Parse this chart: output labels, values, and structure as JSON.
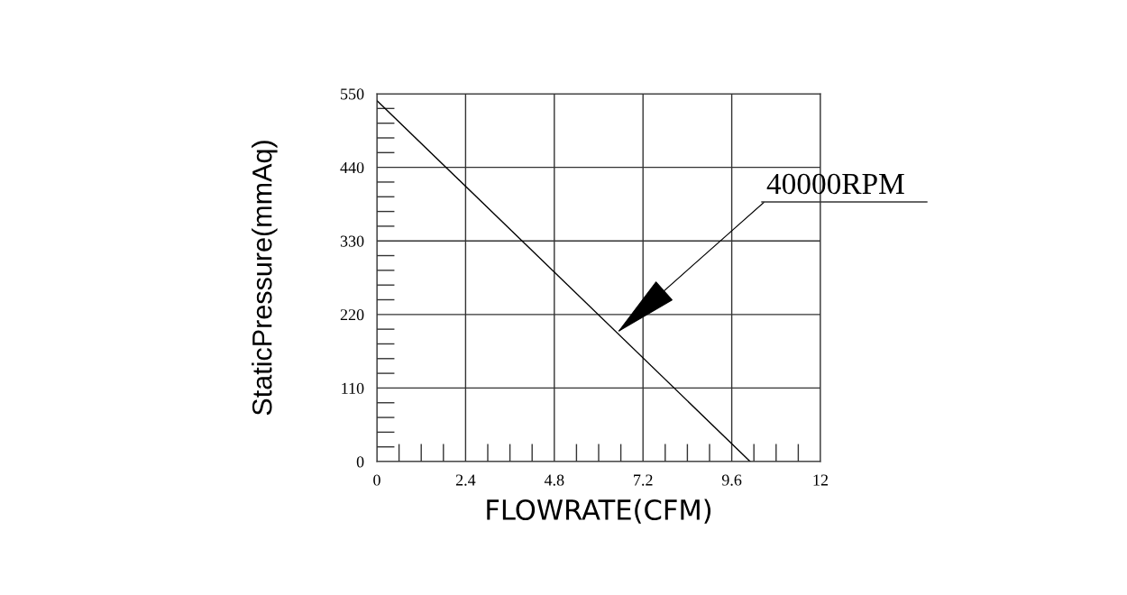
{
  "chart_data": {
    "type": "line",
    "xlabel": "FLOWRATE(CFM)",
    "ylabel": "StaticPressure(mmAq)",
    "x": [
      0,
      10.1
    ],
    "series": [
      {
        "color": "#000000",
        "values": [
          540,
          0
        ]
      }
    ],
    "xlim": [
      0,
      12
    ],
    "xticks": [
      0,
      2.4,
      4.8,
      7.2,
      9.6,
      12
    ],
    "ylim": [
      0,
      550
    ],
    "yticks": [
      0,
      110,
      220,
      330,
      440,
      550
    ],
    "grid": true,
    "marker": "none",
    "line_style": "solid",
    "annotations": [
      {
        "text": "40000RPM",
        "x": 6.5,
        "y": 193
      }
    ]
  }
}
